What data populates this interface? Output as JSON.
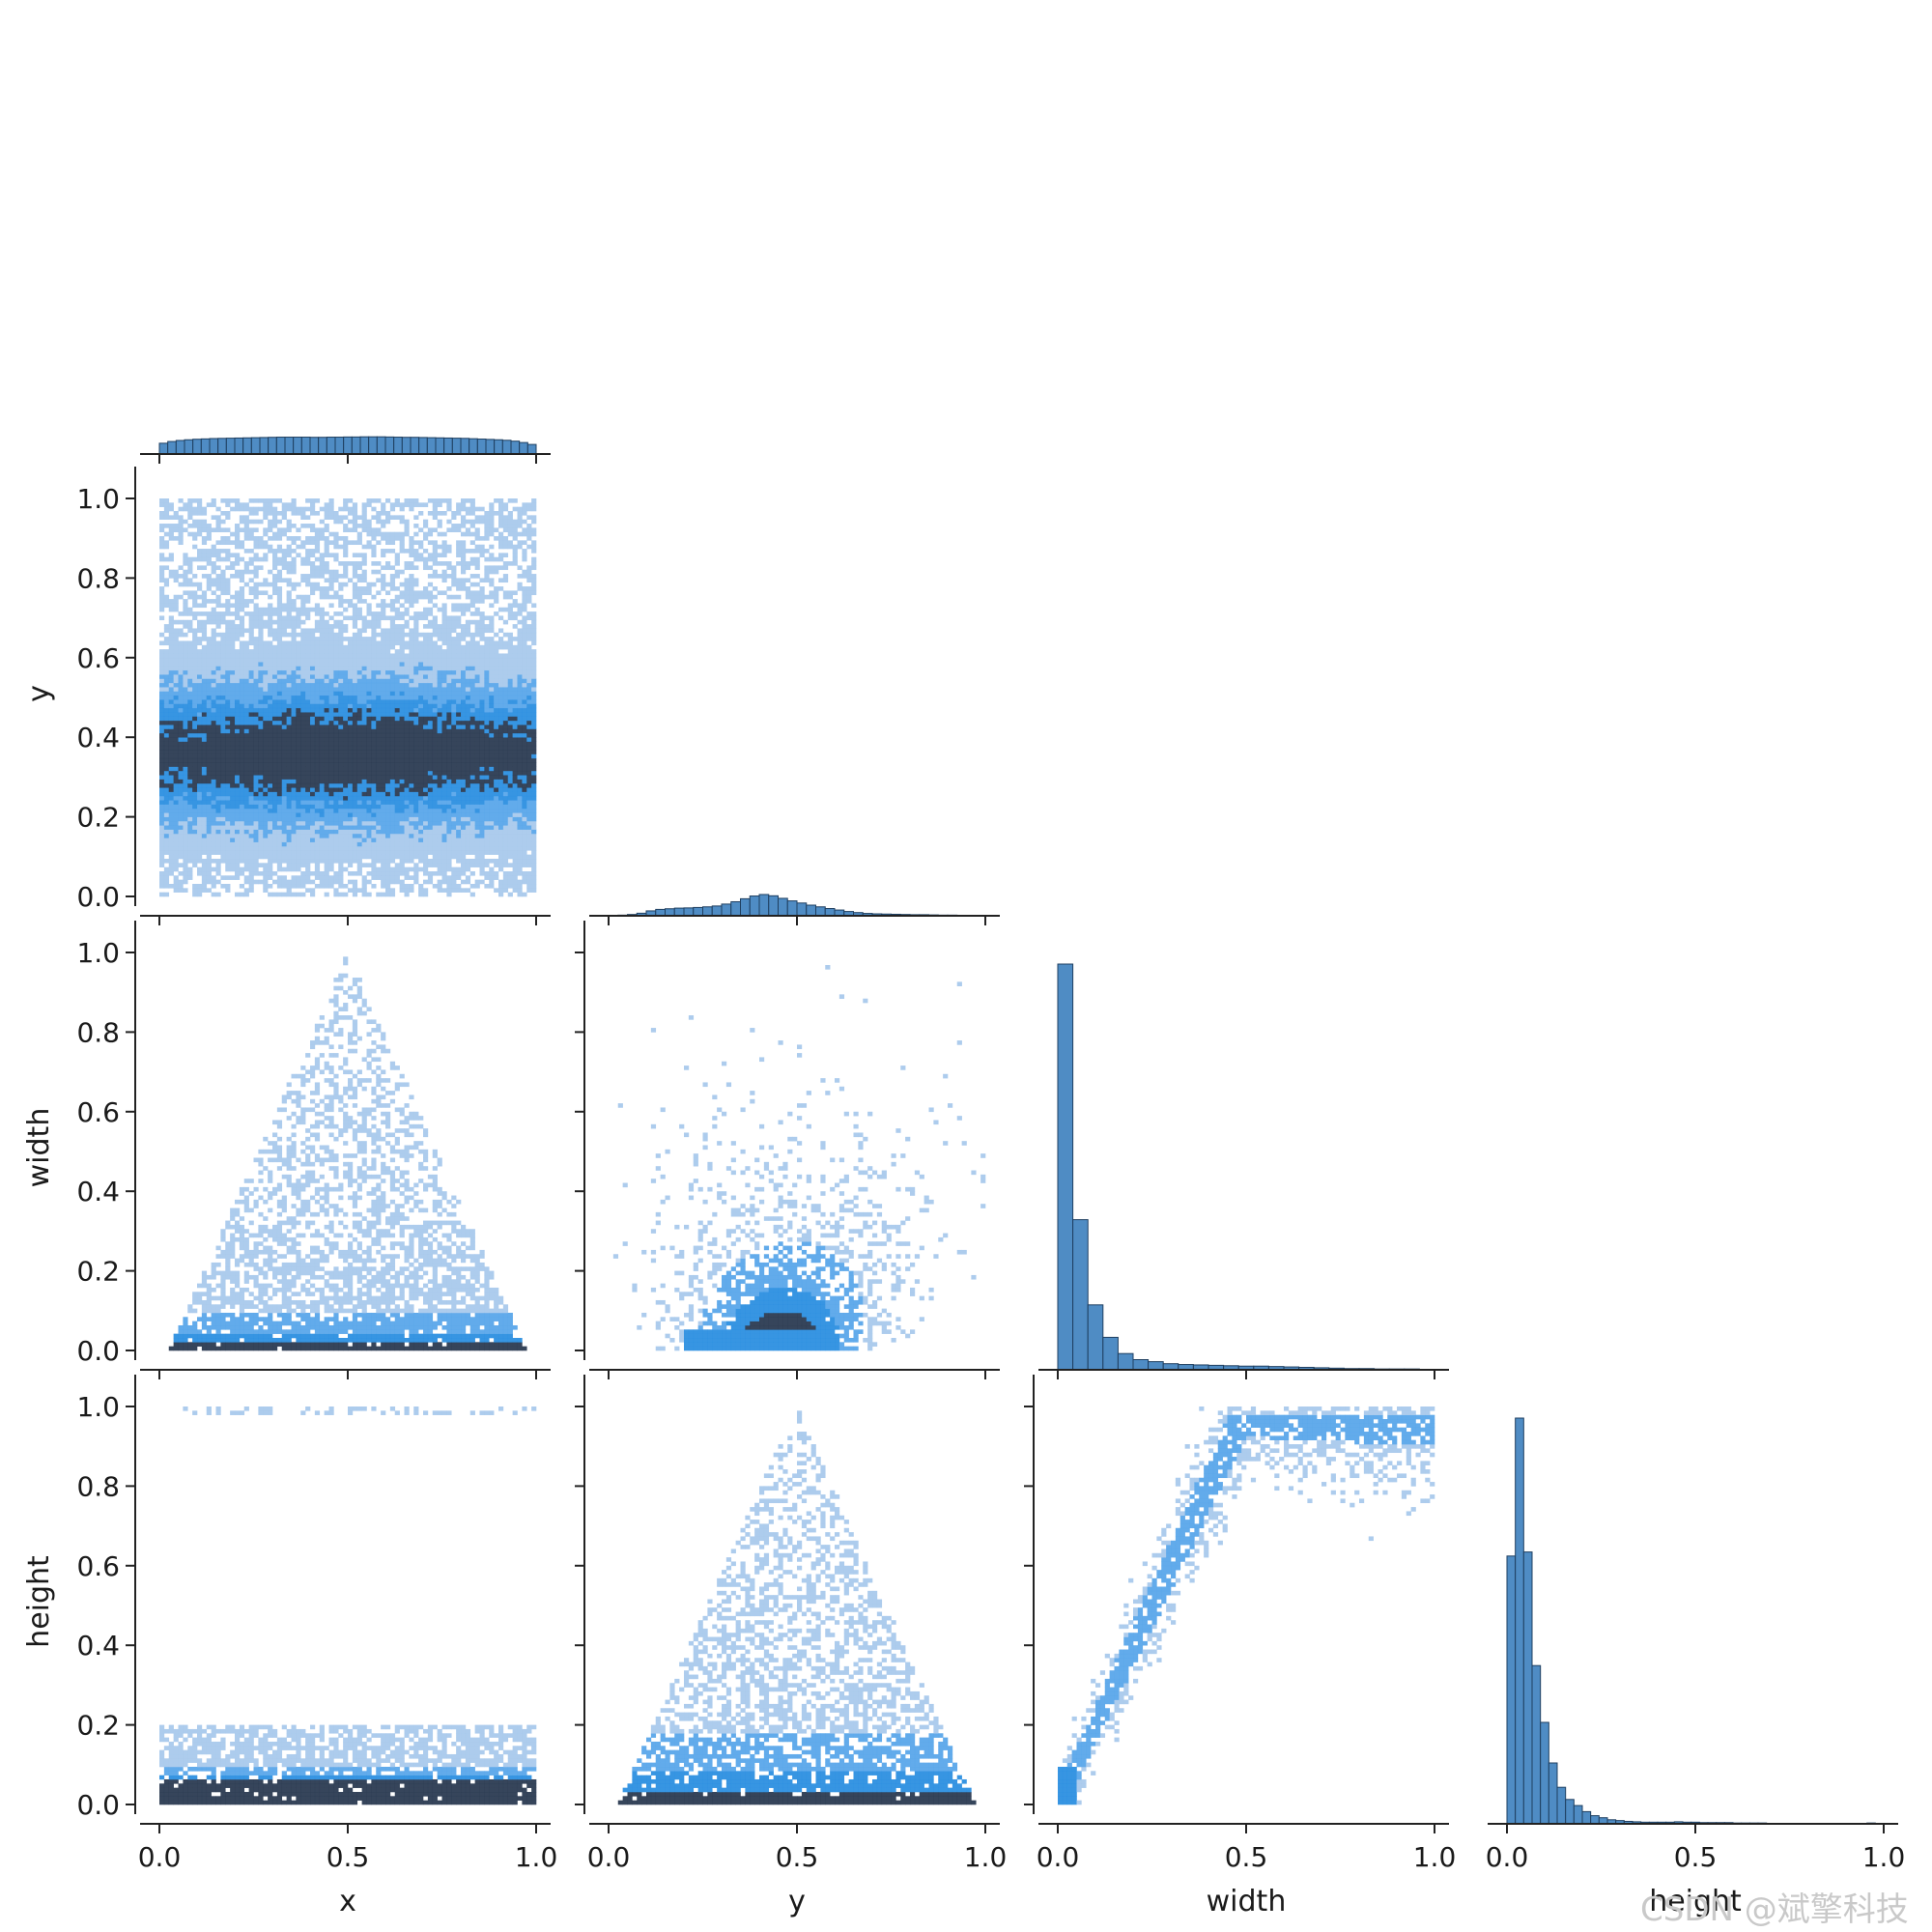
{
  "chart_data": {
    "type": "pairplot",
    "variables": [
      "x",
      "y",
      "width",
      "height"
    ],
    "corner": true,
    "diagonal": "histogram",
    "off_diagonal": "2d-histogram",
    "colors": {
      "bar": "#4f8cc4",
      "dark": "#2b3b52",
      "light": "#a9c9ec",
      "mid": "#2c8fe0"
    },
    "ticks": [
      "0.0",
      "0.2",
      "0.4",
      "0.6",
      "0.8",
      "1.0"
    ],
    "xticks": [
      "0.0",
      "0.5",
      "1.0"
    ],
    "axis_labels": {
      "x": "x",
      "y": "y",
      "width": "width",
      "height": "height"
    },
    "diagonal_histograms": {
      "x": {
        "range": [
          0,
          1
        ],
        "counts": [
          0.62,
          0.72,
          0.78,
          0.82,
          0.85,
          0.87,
          0.89,
          0.9,
          0.91,
          0.92,
          0.93,
          0.94,
          0.95,
          0.96,
          0.97,
          0.97,
          0.97,
          0.97,
          0.96,
          0.96,
          0.97,
          0.97,
          0.98,
          0.98,
          0.99,
          0.99,
          0.99,
          0.98,
          0.97,
          0.96,
          0.96,
          0.95,
          0.94,
          0.93,
          0.92,
          0.91,
          0.9,
          0.88,
          0.86,
          0.84,
          0.82,
          0.79,
          0.74,
          0.66,
          0.55
        ]
      },
      "y": {
        "range": [
          0,
          1
        ],
        "counts": [
          0.01,
          0.03,
          0.06,
          0.12,
          0.23,
          0.3,
          0.33,
          0.36,
          0.37,
          0.39,
          0.42,
          0.46,
          0.55,
          0.66,
          0.8,
          0.93,
          1.0,
          0.94,
          0.82,
          0.7,
          0.6,
          0.5,
          0.42,
          0.34,
          0.27,
          0.2,
          0.15,
          0.11,
          0.09,
          0.08,
          0.07,
          0.06,
          0.05,
          0.05,
          0.04,
          0.03,
          0.03,
          0.02,
          0.02,
          0.01
        ]
      },
      "width": {
        "range": [
          0,
          1
        ],
        "counts": [
          1.0,
          0.37,
          0.16,
          0.08,
          0.04,
          0.025,
          0.02,
          0.015,
          0.013,
          0.012,
          0.011,
          0.01,
          0.009,
          0.009,
          0.008,
          0.007,
          0.006,
          0.005,
          0.004,
          0.003,
          0.003,
          0.002,
          0.002,
          0.002,
          0.001
        ]
      },
      "height": {
        "range": [
          0,
          1
        ],
        "counts": [
          0.66,
          1.0,
          0.67,
          0.39,
          0.25,
          0.15,
          0.09,
          0.06,
          0.045,
          0.03,
          0.02,
          0.015,
          0.01,
          0.008,
          0.006,
          0.005,
          0.004,
          0.004,
          0.004,
          0.004,
          0.005,
          0.004,
          0.004,
          0.003,
          0.003,
          0.003,
          0.003,
          0.002,
          0.002,
          0.002,
          0.002,
          0.001,
          0.001,
          0.001,
          0.001,
          0.001,
          0.001,
          0.001,
          0.001,
          0.001,
          0.001,
          0.001,
          0.001,
          0.002,
          0.001
        ]
      }
    },
    "pairwise_panels": [
      {
        "x": "x",
        "y": "y",
        "pattern": "band",
        "center_y": 0.36,
        "spread": 0.12
      },
      {
        "x": "x",
        "y": "width",
        "pattern": "triangle",
        "apex": 0.5
      },
      {
        "x": "y",
        "y": "width",
        "pattern": "cloud",
        "center_x": 0.5
      },
      {
        "x": "x",
        "y": "height",
        "pattern": "band-low",
        "center_y": 0.03
      },
      {
        "x": "y",
        "y": "height",
        "pattern": "triangle",
        "apex": 0.5
      },
      {
        "x": "width",
        "y": "height",
        "pattern": "diagonal"
      }
    ],
    "watermark": "CSDN @斌擎科技"
  }
}
